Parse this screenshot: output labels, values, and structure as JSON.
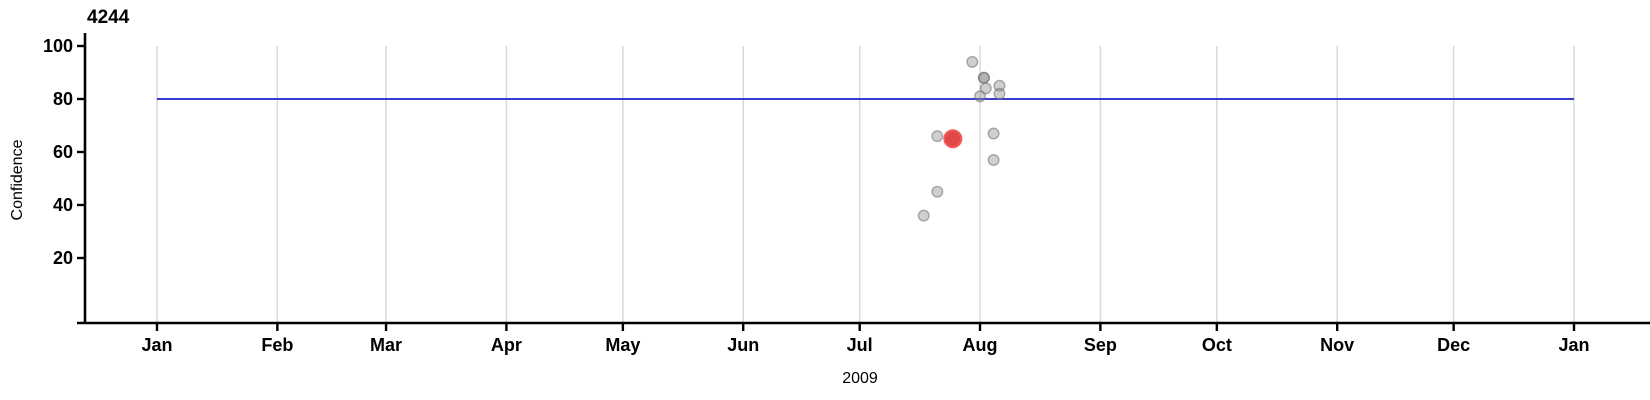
{
  "chart_data": {
    "type": "scatter",
    "title": "4244",
    "xlabel": "2009",
    "ylabel": "Confidence",
    "x_axis": {
      "tick_labels": [
        "Jan",
        "Feb",
        "Mar",
        "Apr",
        "May",
        "Jun",
        "Jul",
        "Aug",
        "Sep",
        "Oct",
        "Nov",
        "Dec",
        "Jan"
      ],
      "tick_days": [
        0,
        31,
        59,
        90,
        120,
        151,
        181,
        212,
        243,
        273,
        304,
        334,
        365
      ],
      "range_days": [
        0,
        365
      ],
      "grid": true
    },
    "y_axis": {
      "ticks": [
        20,
        40,
        60,
        80,
        100
      ],
      "range": [
        0,
        105
      ],
      "grid": false
    },
    "reference_line": {
      "value": 80,
      "color": "#2121c8"
    },
    "legend": false,
    "points": [
      {
        "date": "Jul 17",
        "day": 197.5,
        "value": 36,
        "highlight": false
      },
      {
        "date": "Jul 20",
        "day": 201,
        "value": 45,
        "highlight": false
      },
      {
        "date": "Jul 20",
        "day": 201,
        "value": 66,
        "highlight": false
      },
      {
        "date": "Jul 29",
        "day": 210,
        "value": 94,
        "highlight": false
      },
      {
        "date": "Jul 31",
        "day": 212,
        "value": 81,
        "highlight": false
      },
      {
        "date": "Aug 1",
        "day": 213,
        "value": 88,
        "highlight": false
      },
      {
        "date": "Aug 1",
        "day": 213,
        "value": 88,
        "highlight": false
      },
      {
        "date": "Aug 2",
        "day": 213.5,
        "value": 84,
        "highlight": false
      },
      {
        "date": "Aug 3",
        "day": 215.5,
        "value": 67,
        "highlight": false
      },
      {
        "date": "Aug 3",
        "day": 215.5,
        "value": 57,
        "highlight": false
      },
      {
        "date": "Aug 5",
        "day": 217,
        "value": 85,
        "highlight": false
      },
      {
        "date": "Aug 5",
        "day": 217,
        "value": 82,
        "highlight": false
      },
      {
        "date": "Jul 24",
        "day": 205,
        "value": 65,
        "highlight": true
      }
    ],
    "colors": {
      "gridline": "#d9d9d9",
      "axis": "#000000",
      "reference": "#2121c8",
      "point_gray_fill": "#8c8c8c",
      "point_gray_stroke": "#6e6e6e",
      "point_red_fill": "#dd3333",
      "point_red_stroke": "#f05454"
    }
  }
}
